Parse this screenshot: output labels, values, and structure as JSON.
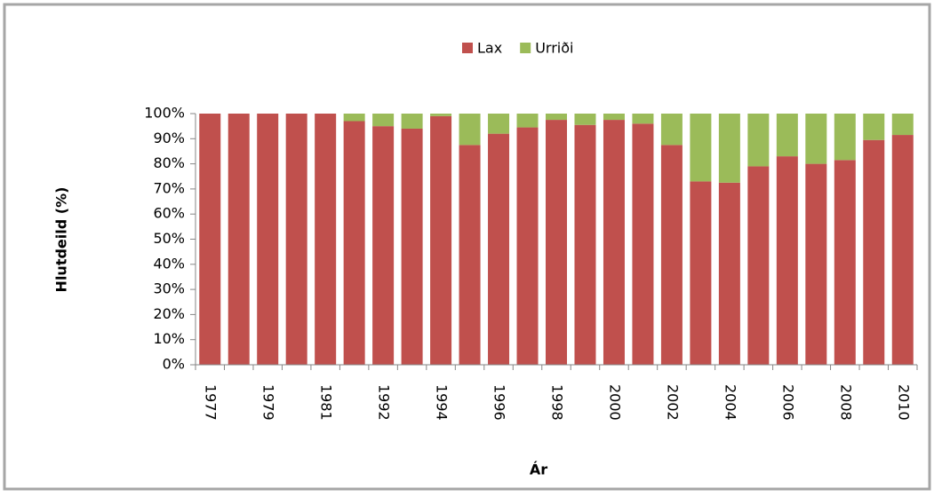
{
  "chart_data": {
    "type": "stacked_bar",
    "y_label": "Hlutdeild (%)",
    "x_label": "Ár",
    "categories": [
      "1977",
      null,
      "1979",
      null,
      "1981",
      null,
      "1992",
      null,
      "1994",
      null,
      "1996",
      null,
      "1998",
      null,
      "2000",
      null,
      "2002",
      null,
      "2004",
      null,
      "2006",
      null,
      "2008",
      null,
      "2010"
    ],
    "series": [
      {
        "name": "Lax",
        "color": "#c0504d",
        "values": [
          100,
          100,
          100,
          100,
          100,
          97,
          95,
          94,
          99,
          87.5,
          92,
          94.5,
          97.5,
          95.5,
          97.5,
          96,
          87.5,
          73,
          72.5,
          79,
          83,
          80,
          81.5,
          89.5,
          91.5
        ]
      },
      {
        "name": "Urriði",
        "color": "#9bbb59",
        "values": [
          0,
          0,
          0,
          0,
          0,
          3,
          5,
          6,
          1,
          12.5,
          8,
          5.5,
          2.5,
          4.5,
          2.5,
          4,
          12.5,
          27,
          27.5,
          21,
          17,
          20,
          18.5,
          10.5,
          8.5
        ]
      }
    ],
    "ylim": [
      0,
      100
    ],
    "yticks": [
      {
        "value": 0,
        "label": "0%"
      },
      {
        "value": 10,
        "label": "10%"
      },
      {
        "value": 20,
        "label": "20%"
      },
      {
        "value": 30,
        "label": "30%"
      },
      {
        "value": 40,
        "label": "40%"
      },
      {
        "value": 50,
        "label": "50%"
      },
      {
        "value": 60,
        "label": "60%"
      },
      {
        "value": 70,
        "label": "70%"
      },
      {
        "value": 80,
        "label": "80%"
      },
      {
        "value": 90,
        "label": "90%"
      },
      {
        "value": 100,
        "label": "100%"
      }
    ],
    "legend": "top"
  }
}
